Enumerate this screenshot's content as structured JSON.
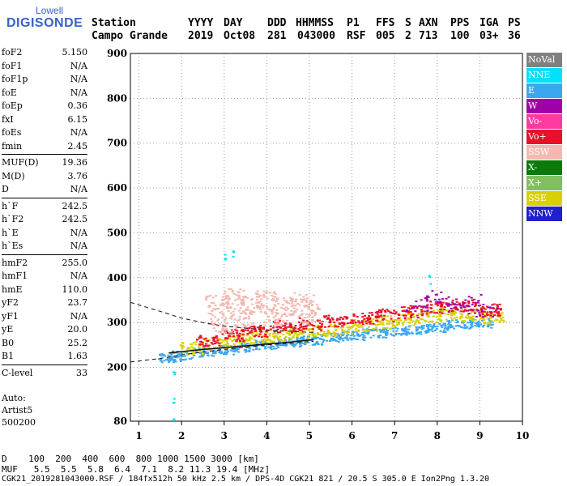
{
  "logo": {
    "top": "Lowell",
    "main": "DIGISONDE"
  },
  "header": {
    "labels": [
      "Station",
      "YYYY",
      "DAY",
      "DDD",
      "HHMMSS",
      "P1",
      "FFS",
      "S",
      "AXN",
      "PPS",
      "IGA",
      "PS"
    ],
    "values": [
      "Campo Grande",
      "2019",
      "Oct08",
      "281",
      "043000",
      "RSF",
      "005",
      "2",
      "713",
      "100",
      "03+",
      "36"
    ]
  },
  "params": [
    {
      "name": "foF2",
      "value": "5.150"
    },
    {
      "name": "foF1",
      "value": "N/A"
    },
    {
      "name": "foF1p",
      "value": "N/A"
    },
    {
      "name": "foE",
      "value": "N/A"
    },
    {
      "name": "foEp",
      "value": "0.36"
    },
    {
      "name": "fxI",
      "value": "6.15"
    },
    {
      "name": "foEs",
      "value": "N/A"
    },
    {
      "name": "fmin",
      "value": "2.45"
    },
    {
      "name": "MUF(D)",
      "value": "19.36"
    },
    {
      "name": "M(D)",
      "value": "3.76"
    },
    {
      "name": "D",
      "value": "N/A"
    },
    {
      "name": "h`F",
      "value": "242.5"
    },
    {
      "name": "h`F2",
      "value": "242.5"
    },
    {
      "name": "h`E",
      "value": "N/A"
    },
    {
      "name": "h`Es",
      "value": "N/A"
    },
    {
      "name": "hmF2",
      "value": "255.0"
    },
    {
      "name": "hmF1",
      "value": "N/A"
    },
    {
      "name": "hmE",
      "value": "110.0"
    },
    {
      "name": "yF2",
      "value": "23.7"
    },
    {
      "name": "yF1",
      "value": "N/A"
    },
    {
      "name": "yE",
      "value": "20.0"
    },
    {
      "name": "B0",
      "value": "25.2"
    },
    {
      "name": "B1",
      "value": "1.63"
    },
    {
      "name": "C-level",
      "value": "33"
    }
  ],
  "autoscaling": {
    "line1": "Auto:",
    "line2": "Artist5",
    "line3": "500200"
  },
  "legend": [
    {
      "label": "NoVal",
      "bg": "#808080",
      "fg": "#ffffff"
    },
    {
      "label": "NNE",
      "bg": "#00e0ff",
      "fg": "#ffffff"
    },
    {
      "label": "E",
      "bg": "#3aa8f0",
      "fg": "#ffffff"
    },
    {
      "label": "W",
      "bg": "#a000a8",
      "fg": "#ffffff"
    },
    {
      "label": "Vo-",
      "bg": "#ff3aa0",
      "fg": "#ffffff"
    },
    {
      "label": "Vo+",
      "bg": "#e8102a",
      "fg": "#ffffff"
    },
    {
      "label": "SSW",
      "bg": "#f4b8b0",
      "fg": "#ffffff"
    },
    {
      "label": "X-",
      "bg": "#0a7a0a",
      "fg": "#ffffff"
    },
    {
      "label": "X+",
      "bg": "#80c060",
      "fg": "#ffffff"
    },
    {
      "label": "SSE",
      "bg": "#d8d000",
      "fg": "#ffffff"
    },
    {
      "label": "NNW",
      "bg": "#2020d0",
      "fg": "#ffffff"
    }
  ],
  "footer": {
    "d_row": "D    100  200  400  600  800 1000 1500 3000 [km]",
    "muf_row": "MUF   5.5  5.5  5.8  6.4  7.1  8.2 11.3 19.4 [MHz]",
    "info": "CGK21_2019281043000.RSF / 184fx512h 50 kHz 2.5 km / DPS-4D CGK21 821 / 20.5 S 305.0 E Ion2Png 1.3.20"
  },
  "chart_data": {
    "type": "scatter",
    "xlim": [
      0.8,
      10
    ],
    "ylim": [
      80,
      900
    ],
    "x_ticks": [
      1,
      2,
      3,
      4,
      5,
      6,
      7,
      8,
      9,
      10
    ],
    "y_ticks": [
      80,
      200,
      300,
      400,
      500,
      600,
      700,
      800,
      900
    ],
    "grid": true,
    "series": [
      {
        "name": "E",
        "points": [
          [
            1.7,
            222
          ],
          [
            2.0,
            228
          ],
          [
            2.5,
            235
          ],
          [
            3.0,
            240
          ],
          [
            3.5,
            246
          ],
          [
            4.0,
            252
          ],
          [
            4.5,
            258
          ],
          [
            5.0,
            262
          ],
          [
            5.5,
            268
          ],
          [
            6.0,
            272
          ],
          [
            6.5,
            278
          ],
          [
            7.0,
            282
          ],
          [
            7.5,
            286
          ],
          [
            8.0,
            290
          ],
          [
            8.5,
            298
          ],
          [
            9.0,
            300
          ]
        ]
      },
      {
        "name": "SSE",
        "points": [
          [
            2.2,
            245
          ],
          [
            2.8,
            255
          ],
          [
            3.3,
            262
          ],
          [
            3.8,
            268
          ],
          [
            4.3,
            272
          ],
          [
            4.8,
            278
          ],
          [
            5.3,
            285
          ],
          [
            5.8,
            290
          ],
          [
            6.3,
            296
          ],
          [
            6.8,
            302
          ],
          [
            7.3,
            308
          ],
          [
            7.8,
            315
          ],
          [
            8.3,
            320
          ],
          [
            8.8,
            318
          ],
          [
            9.3,
            312
          ]
        ]
      },
      {
        "name": "Vo+",
        "points": [
          [
            2.6,
            262
          ],
          [
            3.2,
            272
          ],
          [
            3.8,
            282
          ],
          [
            4.4,
            292
          ],
          [
            5.0,
            298
          ],
          [
            5.6,
            305
          ],
          [
            6.2,
            310
          ],
          [
            6.8,
            318
          ],
          [
            7.4,
            325
          ],
          [
            8.0,
            335
          ],
          [
            8.6,
            340
          ],
          [
            9.2,
            330
          ]
        ]
      },
      {
        "name": "SSW",
        "points": [
          [
            2.8,
            340
          ],
          [
            3.2,
            355
          ],
          [
            3.6,
            342
          ],
          [
            4.0,
            350
          ],
          [
            4.4,
            338
          ],
          [
            4.8,
            346
          ],
          [
            5.0,
            320
          ],
          [
            3.4,
            310
          ],
          [
            4.2,
            315
          ],
          [
            2.9,
            300
          ]
        ]
      },
      {
        "name": "W",
        "points": [
          [
            7.9,
            360
          ],
          [
            8.2,
            345
          ],
          [
            8.5,
            330
          ],
          [
            8.8,
            350
          ],
          [
            9.1,
            325
          ],
          [
            7.5,
            340
          ]
        ]
      },
      {
        "name": "NNE",
        "points": [
          [
            1.8,
            180
          ],
          [
            1.8,
            130
          ],
          [
            1.8,
            90
          ],
          [
            3.0,
            450
          ],
          [
            3.2,
            455
          ],
          [
            7.8,
            400
          ]
        ]
      }
    ],
    "curves": [
      {
        "name": "trace",
        "points": [
          [
            1.7,
            232
          ],
          [
            2.5,
            240
          ],
          [
            3.0,
            244
          ],
          [
            3.5,
            248
          ],
          [
            4.0,
            252
          ],
          [
            4.5,
            256
          ],
          [
            5.1,
            262
          ]
        ]
      },
      {
        "name": "virtual-height-lower",
        "dashed": true,
        "points": [
          [
            0.8,
            212
          ],
          [
            1.5,
            220
          ],
          [
            2.0,
            228
          ],
          [
            3.0,
            240
          ],
          [
            4.0,
            250
          ],
          [
            5.1,
            258
          ]
        ]
      },
      {
        "name": "virtual-height-upper",
        "dashed": true,
        "points": [
          [
            0.8,
            345
          ],
          [
            1.5,
            325
          ],
          [
            2.0,
            310
          ],
          [
            2.5,
            300
          ],
          [
            3.0,
            292
          ],
          [
            4.0,
            283
          ],
          [
            5.1,
            278
          ]
        ]
      }
    ]
  }
}
